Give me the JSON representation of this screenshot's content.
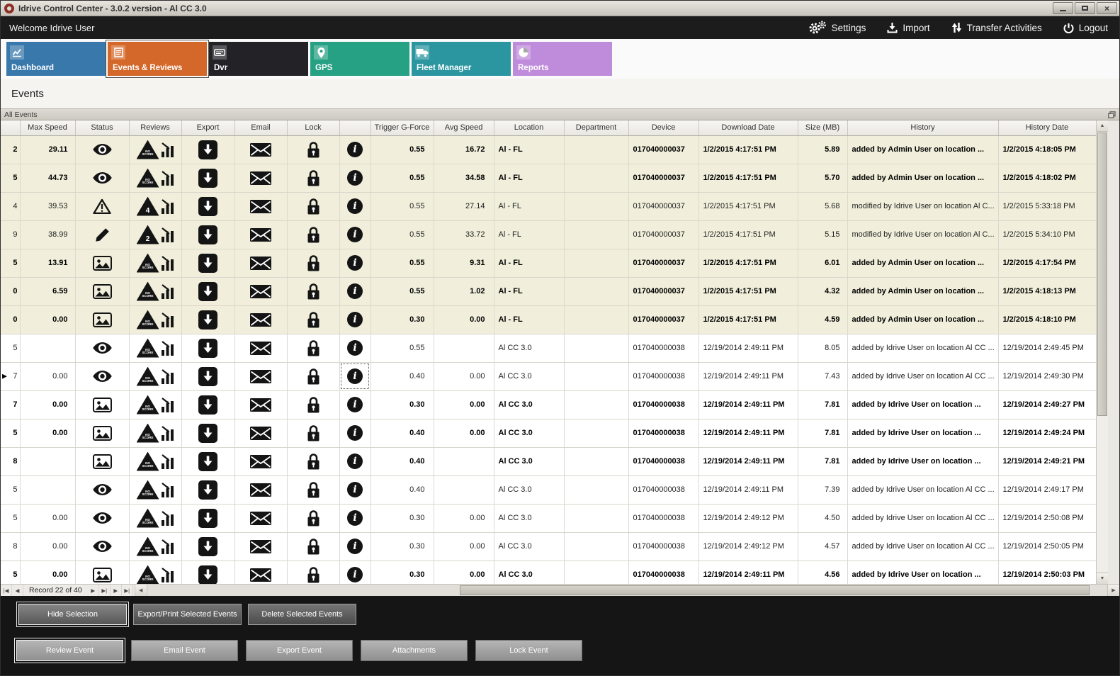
{
  "window": {
    "title": "Idrive Control Center - 3.0.2 version - Al CC 3.0"
  },
  "menubar": {
    "welcome": "Welcome Idrive User",
    "actions": [
      {
        "label": "Settings",
        "icon": "gears-icon"
      },
      {
        "label": "Import",
        "icon": "import-icon"
      },
      {
        "label": "Transfer Activities",
        "icon": "transfer-icon"
      },
      {
        "label": "Logout",
        "icon": "power-icon"
      }
    ]
  },
  "tabs": [
    {
      "label": "Dashboard",
      "color": "#3878ab",
      "icon": "line-chart-icon",
      "selected": false
    },
    {
      "label": "Events & Reviews",
      "color": "#d4682a",
      "icon": "checklist-icon",
      "selected": true
    },
    {
      "label": "Dvr",
      "color": "#222227",
      "icon": "dvr-icon",
      "selected": false
    },
    {
      "label": "GPS",
      "color": "#27a183",
      "icon": "gps-pin-icon",
      "selected": false
    },
    {
      "label": "Fleet Manager",
      "color": "#2c96a0",
      "icon": "truck-icon",
      "selected": false
    },
    {
      "label": "Reports",
      "color": "#bf8cdb",
      "icon": "pie-chart-icon",
      "selected": false
    }
  ],
  "page": {
    "heading": "Events",
    "panel_title": "All Events"
  },
  "grid": {
    "columns": [
      "",
      "Max Speed",
      "Status",
      "Reviews",
      "Export",
      "Email",
      "Lock",
      "",
      "Trigger G-Force",
      "Avg Speed",
      "Location",
      "Department",
      "Device",
      "Download Date",
      "Size (MB)",
      "History",
      "History Date"
    ],
    "rows": [
      {
        "id": "2",
        "max_speed": "29.11",
        "status": "eye",
        "review": "NO SCORE",
        "trigger": "0.55",
        "avg_speed": "16.72",
        "location": "Al - FL",
        "department": "",
        "device": "017040000037",
        "download_date": "1/2/2015 4:17:51 PM",
        "size": "5.89",
        "history": "added by Admin User on location ...",
        "history_date": "1/2/2015 4:18:05 PM",
        "bold": true,
        "beige": true,
        "marker": false,
        "focus_info": false
      },
      {
        "id": "5",
        "max_speed": "44.73",
        "status": "eye",
        "review": "NO SCORE",
        "trigger": "0.55",
        "avg_speed": "34.58",
        "location": "Al - FL",
        "department": "",
        "device": "017040000037",
        "download_date": "1/2/2015 4:17:51 PM",
        "size": "5.70",
        "history": "added by Admin User on location ...",
        "history_date": "1/2/2015 4:18:02 PM",
        "bold": true,
        "beige": true,
        "marker": false,
        "focus_info": false
      },
      {
        "id": "4",
        "max_speed": "39.53",
        "status": "warning",
        "review": "4",
        "trigger": "0.55",
        "avg_speed": "27.14",
        "location": "Al - FL",
        "department": "",
        "device": "017040000037",
        "download_date": "1/2/2015 4:17:51 PM",
        "size": "5.68",
        "history": "modified by Idrive User on location Al C...",
        "history_date": "1/2/2015 5:33:18 PM",
        "bold": false,
        "beige": true,
        "marker": false,
        "focus_info": false
      },
      {
        "id": "9",
        "max_speed": "38.99",
        "status": "pencil",
        "review": "2",
        "trigger": "0.55",
        "avg_speed": "33.72",
        "location": "Al - FL",
        "department": "",
        "device": "017040000037",
        "download_date": "1/2/2015 4:17:51 PM",
        "size": "5.15",
        "history": "modified by Idrive User on location Al C...",
        "history_date": "1/2/2015 5:34:10 PM",
        "bold": false,
        "beige": true,
        "marker": false,
        "focus_info": false
      },
      {
        "id": "5",
        "max_speed": "13.91",
        "status": "image",
        "review": "NO SCORE",
        "trigger": "0.55",
        "avg_speed": "9.31",
        "location": "Al - FL",
        "department": "",
        "device": "017040000037",
        "download_date": "1/2/2015 4:17:51 PM",
        "size": "6.01",
        "history": "added by Admin User on location ...",
        "history_date": "1/2/2015 4:17:54 PM",
        "bold": true,
        "beige": true,
        "marker": false,
        "focus_info": false
      },
      {
        "id": "0",
        "max_speed": "6.59",
        "status": "image",
        "review": "NO SCORE",
        "trigger": "0.55",
        "avg_speed": "1.02",
        "location": "Al - FL",
        "department": "",
        "device": "017040000037",
        "download_date": "1/2/2015 4:17:51 PM",
        "size": "4.32",
        "history": "added by Admin User on location ...",
        "history_date": "1/2/2015 4:18:13 PM",
        "bold": true,
        "beige": true,
        "marker": false,
        "focus_info": false
      },
      {
        "id": "0",
        "max_speed": "0.00",
        "status": "image",
        "review": "NO SCORE",
        "trigger": "0.30",
        "avg_speed": "0.00",
        "location": "Al - FL",
        "department": "",
        "device": "017040000037",
        "download_date": "1/2/2015 4:17:51 PM",
        "size": "4.59",
        "history": "added by Admin User on location ...",
        "history_date": "1/2/2015 4:18:10 PM",
        "bold": true,
        "beige": true,
        "marker": false,
        "focus_info": false
      },
      {
        "id": "5",
        "max_speed": "",
        "status": "eye",
        "review": "NO SCORE",
        "trigger": "0.55",
        "avg_speed": "",
        "location": "Al CC 3.0",
        "department": "",
        "device": "017040000038",
        "download_date": "12/19/2014 2:49:11 PM",
        "size": "8.05",
        "history": "added by Idrive User on location Al CC ...",
        "history_date": "12/19/2014 2:49:45 PM",
        "bold": false,
        "beige": false,
        "marker": false,
        "focus_info": false
      },
      {
        "id": "7",
        "max_speed": "0.00",
        "status": "eye",
        "review": "NO SCORE",
        "trigger": "0.40",
        "avg_speed": "0.00",
        "location": "Al CC 3.0",
        "department": "",
        "device": "017040000038",
        "download_date": "12/19/2014 2:49:11 PM",
        "size": "7.43",
        "history": "added by Idrive User on location Al CC ...",
        "history_date": "12/19/2014 2:49:30 PM",
        "bold": false,
        "beige": false,
        "marker": true,
        "focus_info": true
      },
      {
        "id": "7",
        "max_speed": "0.00",
        "status": "image",
        "review": "NO SCORE",
        "trigger": "0.30",
        "avg_speed": "0.00",
        "location": "Al CC 3.0",
        "department": "",
        "device": "017040000038",
        "download_date": "12/19/2014 2:49:11 PM",
        "size": "7.81",
        "history": "added by Idrive User on location ...",
        "history_date": "12/19/2014 2:49:27 PM",
        "bold": true,
        "beige": false,
        "marker": false,
        "focus_info": false
      },
      {
        "id": "5",
        "max_speed": "0.00",
        "status": "image",
        "review": "NO SCORE",
        "trigger": "0.40",
        "avg_speed": "0.00",
        "location": "Al CC 3.0",
        "department": "",
        "device": "017040000038",
        "download_date": "12/19/2014 2:49:11 PM",
        "size": "7.81",
        "history": "added by Idrive User on location ...",
        "history_date": "12/19/2014 2:49:24 PM",
        "bold": true,
        "beige": false,
        "marker": false,
        "focus_info": false
      },
      {
        "id": "8",
        "max_speed": "",
        "status": "image",
        "review": "NO SCORE",
        "trigger": "0.40",
        "avg_speed": "",
        "location": "Al CC 3.0",
        "department": "",
        "device": "017040000038",
        "download_date": "12/19/2014 2:49:11 PM",
        "size": "7.81",
        "history": "added by Idrive User on location ...",
        "history_date": "12/19/2014 2:49:21 PM",
        "bold": true,
        "beige": false,
        "marker": false,
        "focus_info": false
      },
      {
        "id": "5",
        "max_speed": "",
        "status": "eye",
        "review": "NO SCORE",
        "trigger": "0.40",
        "avg_speed": "",
        "location": "Al CC 3.0",
        "department": "",
        "device": "017040000038",
        "download_date": "12/19/2014 2:49:11 PM",
        "size": "7.39",
        "history": "added by Idrive User on location Al CC ...",
        "history_date": "12/19/2014 2:49:17 PM",
        "bold": false,
        "beige": false,
        "marker": false,
        "focus_info": false
      },
      {
        "id": "5",
        "max_speed": "0.00",
        "status": "eye",
        "review": "NO SCORE",
        "trigger": "0.30",
        "avg_speed": "0.00",
        "location": "Al CC 3.0",
        "department": "",
        "device": "017040000038",
        "download_date": "12/19/2014 2:49:12 PM",
        "size": "4.50",
        "history": "added by Idrive User on location Al CC ...",
        "history_date": "12/19/2014 2:50:08 PM",
        "bold": false,
        "beige": false,
        "marker": false,
        "focus_info": false
      },
      {
        "id": "8",
        "max_speed": "0.00",
        "status": "eye",
        "review": "NO SCORE",
        "trigger": "0.30",
        "avg_speed": "0.00",
        "location": "Al CC 3.0",
        "department": "",
        "device": "017040000038",
        "download_date": "12/19/2014 2:49:12 PM",
        "size": "4.57",
        "history": "added by Idrive User on location Al CC ...",
        "history_date": "12/19/2014 2:50:05 PM",
        "bold": false,
        "beige": false,
        "marker": false,
        "focus_info": false
      },
      {
        "id": "5",
        "max_speed": "0.00",
        "status": "image",
        "review": "NO SCORE",
        "trigger": "0.30",
        "avg_speed": "0.00",
        "location": "Al CC 3.0",
        "department": "",
        "device": "017040000038",
        "download_date": "12/19/2014 2:49:11 PM",
        "size": "4.56",
        "history": "added by Idrive User on location ...",
        "history_date": "12/19/2014 2:50:03 PM",
        "bold": true,
        "beige": false,
        "marker": false,
        "focus_info": false
      }
    ]
  },
  "navigator": {
    "record_text": "Record 22 of 40",
    "buttons_left": [
      "first-record",
      "prev-record"
    ],
    "buttons_right": [
      "next-record",
      "last-record",
      "next-page",
      "last-page"
    ]
  },
  "footer": {
    "row1": [
      {
        "label": "Hide Selection",
        "focused": true
      },
      {
        "label": "Export/Print Selected Events",
        "focused": false
      },
      {
        "label": "Delete Selected  Events",
        "focused": false
      }
    ],
    "row2": [
      {
        "label": "Review Event",
        "focused": true
      },
      {
        "label": "Email Event",
        "focused": false
      },
      {
        "label": "Export Event",
        "focused": false
      },
      {
        "label": "Attachments",
        "focused": false
      },
      {
        "label": "Lock Event",
        "focused": false
      }
    ]
  }
}
